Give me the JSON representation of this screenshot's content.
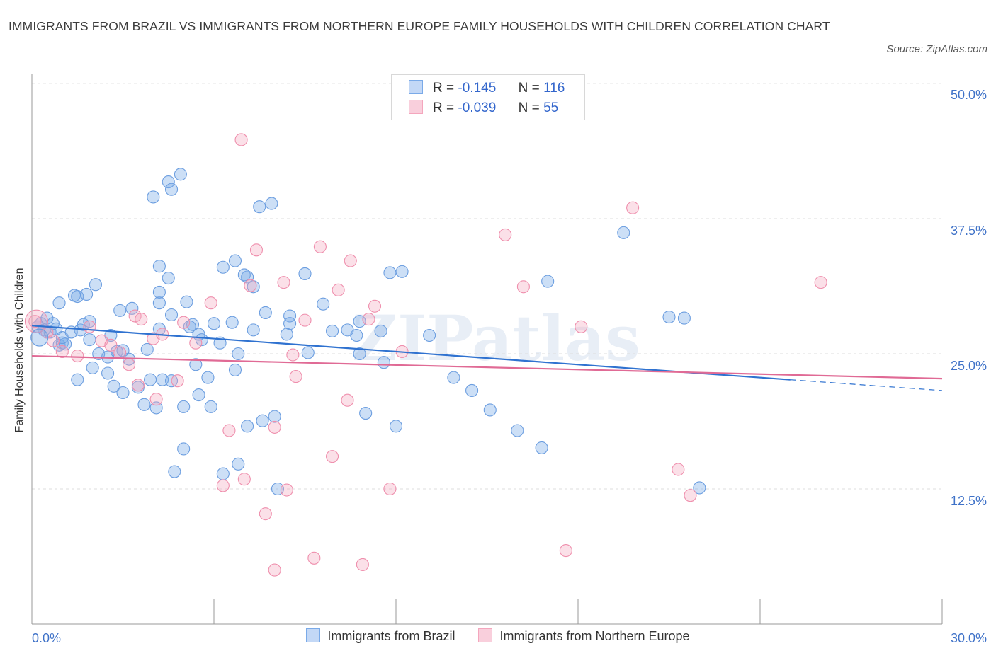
{
  "title": "IMMIGRANTS FROM BRAZIL VS IMMIGRANTS FROM NORTHERN EUROPE FAMILY HOUSEHOLDS WITH CHILDREN CORRELATION CHART",
  "source": "Source: ZipAtlas.com",
  "watermark": "ZIPatlas",
  "colors": {
    "series1": "#7aaae8",
    "series1_line": "#2f72d0",
    "series2": "#f4a6bd",
    "series2_line": "#e06a95",
    "tick_label": "#3f72c8"
  },
  "legend_top": {
    "rows": [
      {
        "r_label": "R =",
        "r_value": "-0.145",
        "n_label": "N =",
        "n_value": "116"
      },
      {
        "r_label": "R =",
        "r_value": "-0.039",
        "n_label": "N =",
        "n_value": "55"
      }
    ]
  },
  "chart_data": {
    "type": "scatter",
    "title": "IMMIGRANTS FROM BRAZIL VS IMMIGRANTS FROM NORTHERN EUROPE FAMILY HOUSEHOLDS WITH CHILDREN CORRELATION CHART",
    "xlabel": "",
    "ylabel": "Family Households with Children",
    "xlim": [
      0,
      30
    ],
    "ylim": [
      0,
      50
    ],
    "x_tick_labels": [
      "0.0%",
      "30.0%"
    ],
    "y_tick_labels": [
      "12.5%",
      "25.0%",
      "37.5%",
      "50.0%"
    ],
    "y_ticks": [
      12.5,
      25.0,
      37.5,
      50.0
    ],
    "grid": true,
    "legend_position": "bottom-center",
    "series": [
      {
        "name": "Immigrants from Brazil",
        "R": -0.145,
        "N": 116,
        "trend": {
          "x": [
            0,
            25
          ],
          "y": [
            27.6,
            22.6
          ],
          "dashed_extension_to_x": 30
        },
        "points": [
          [
            0.2,
            27.5
          ],
          [
            0.3,
            27.8
          ],
          [
            0.4,
            27.2
          ],
          [
            0.5,
            28.3
          ],
          [
            0.6,
            27.0
          ],
          [
            0.7,
            27.8
          ],
          [
            0.8,
            27.3
          ],
          [
            0.9,
            25.8
          ],
          [
            1.0,
            26.0
          ],
          [
            1.1,
            25.9
          ],
          [
            0.9,
            29.7
          ],
          [
            1.4,
            30.4
          ],
          [
            1.5,
            30.3
          ],
          [
            1.8,
            30.5
          ],
          [
            2.1,
            31.4
          ],
          [
            1.6,
            27.2
          ],
          [
            1.7,
            27.7
          ],
          [
            1.9,
            26.3
          ],
          [
            2.2,
            25.0
          ],
          [
            2.5,
            24.7
          ],
          [
            2.8,
            25.2
          ],
          [
            3.0,
            25.3
          ],
          [
            2.9,
            29.0
          ],
          [
            3.3,
            29.2
          ],
          [
            1.5,
            22.6
          ],
          [
            2.0,
            23.7
          ],
          [
            2.5,
            23.2
          ],
          [
            2.7,
            22.0
          ],
          [
            3.0,
            21.4
          ],
          [
            3.5,
            21.9
          ],
          [
            3.7,
            20.3
          ],
          [
            3.9,
            22.6
          ],
          [
            4.3,
            22.6
          ],
          [
            4.1,
            20.0
          ],
          [
            4.6,
            22.5
          ],
          [
            4.2,
            27.3
          ],
          [
            4.6,
            28.6
          ],
          [
            4.2,
            29.7
          ],
          [
            4.2,
            33.1
          ],
          [
            4.5,
            32.0
          ],
          [
            4.0,
            39.5
          ],
          [
            4.5,
            40.9
          ],
          [
            4.6,
            40.2
          ],
          [
            4.9,
            41.6
          ],
          [
            4.2,
            30.7
          ],
          [
            5.1,
            29.8
          ],
          [
            5.3,
            27.7
          ],
          [
            5.5,
            26.8
          ],
          [
            5.6,
            26.3
          ],
          [
            5.8,
            22.8
          ],
          [
            5.5,
            21.2
          ],
          [
            5.9,
            20.1
          ],
          [
            5.4,
            24.0
          ],
          [
            5.0,
            20.1
          ],
          [
            5.0,
            16.2
          ],
          [
            4.7,
            14.1
          ],
          [
            6.0,
            27.8
          ],
          [
            6.6,
            27.9
          ],
          [
            6.3,
            33.0
          ],
          [
            6.7,
            33.6
          ],
          [
            7.1,
            32.1
          ],
          [
            7.3,
            31.2
          ],
          [
            7.0,
            32.3
          ],
          [
            7.5,
            38.6
          ],
          [
            7.9,
            38.9
          ],
          [
            7.7,
            28.8
          ],
          [
            8.5,
            28.5
          ],
          [
            8.5,
            27.8
          ],
          [
            7.3,
            27.2
          ],
          [
            6.8,
            25.0
          ],
          [
            6.7,
            23.5
          ],
          [
            7.1,
            18.3
          ],
          [
            7.6,
            18.8
          ],
          [
            8.0,
            19.2
          ],
          [
            6.3,
            13.9
          ],
          [
            6.8,
            14.8
          ],
          [
            8.1,
            12.5
          ],
          [
            9.0,
            32.4
          ],
          [
            9.6,
            29.6
          ],
          [
            9.9,
            27.1
          ],
          [
            10.7,
            26.7
          ],
          [
            10.8,
            25.0
          ],
          [
            11.5,
            27.1
          ],
          [
            10.8,
            28.0
          ],
          [
            11.8,
            32.5
          ],
          [
            12.2,
            32.6
          ],
          [
            11.0,
            19.5
          ],
          [
            12.0,
            18.3
          ],
          [
            13.1,
            26.7
          ],
          [
            13.9,
            22.8
          ],
          [
            14.5,
            21.6
          ],
          [
            15.1,
            19.8
          ],
          [
            16.0,
            17.9
          ],
          [
            16.8,
            16.3
          ],
          [
            17.0,
            31.7
          ],
          [
            19.5,
            36.2
          ],
          [
            21.0,
            28.4
          ],
          [
            21.5,
            28.3
          ],
          [
            22.0,
            12.6
          ],
          [
            1.0,
            26.5
          ],
          [
            1.3,
            27.0
          ],
          [
            1.9,
            28.0
          ],
          [
            2.6,
            26.7
          ],
          [
            3.2,
            24.5
          ],
          [
            3.8,
            25.4
          ],
          [
            5.2,
            27.5
          ],
          [
            6.2,
            26.0
          ],
          [
            8.4,
            26.8
          ],
          [
            9.1,
            25.1
          ],
          [
            10.4,
            27.2
          ],
          [
            11.6,
            24.2
          ]
        ]
      },
      {
        "name": "Immigrants from Northern Europe",
        "R": -0.039,
        "N": 55,
        "trend": {
          "x": [
            0,
            30
          ],
          "y": [
            24.8,
            22.7
          ]
        },
        "points": [
          [
            0.1,
            28.0
          ],
          [
            0.5,
            27.0
          ],
          [
            0.7,
            26.2
          ],
          [
            1.0,
            25.2
          ],
          [
            1.5,
            24.8
          ],
          [
            1.9,
            27.5
          ],
          [
            2.3,
            26.2
          ],
          [
            2.6,
            25.8
          ],
          [
            2.9,
            25.1
          ],
          [
            3.2,
            24.0
          ],
          [
            3.4,
            28.5
          ],
          [
            3.6,
            28.2
          ],
          [
            4.0,
            26.4
          ],
          [
            4.3,
            26.8
          ],
          [
            3.5,
            22.1
          ],
          [
            4.1,
            20.8
          ],
          [
            4.8,
            22.5
          ],
          [
            5.0,
            27.9
          ],
          [
            5.4,
            26.0
          ],
          [
            5.9,
            29.7
          ],
          [
            6.5,
            17.9
          ],
          [
            6.3,
            12.8
          ],
          [
            7.2,
            31.3
          ],
          [
            7.4,
            34.6
          ],
          [
            8.3,
            31.6
          ],
          [
            8.0,
            18.2
          ],
          [
            7.7,
            10.2
          ],
          [
            7.0,
            13.4
          ],
          [
            9.0,
            28.1
          ],
          [
            9.5,
            34.9
          ],
          [
            10.1,
            30.9
          ],
          [
            10.5,
            33.6
          ],
          [
            11.1,
            28.2
          ],
          [
            11.3,
            29.4
          ],
          [
            10.4,
            20.7
          ],
          [
            9.9,
            15.5
          ],
          [
            8.7,
            22.9
          ],
          [
            8.6,
            24.9
          ],
          [
            8.4,
            12.4
          ],
          [
            8.0,
            5.0
          ],
          [
            9.3,
            6.1
          ],
          [
            10.9,
            5.5
          ],
          [
            11.8,
            12.5
          ],
          [
            12.2,
            25.2
          ],
          [
            15.6,
            36.0
          ],
          [
            16.2,
            31.2
          ],
          [
            18.1,
            27.5
          ],
          [
            17.6,
            6.8
          ],
          [
            19.8,
            38.5
          ],
          [
            21.3,
            14.3
          ],
          [
            21.7,
            11.9
          ],
          [
            26.0,
            31.6
          ],
          [
            6.9,
            44.8
          ],
          [
            12.8,
            49.1
          ]
        ]
      }
    ]
  },
  "bottom_legend": [
    {
      "label": "Immigrants from Brazil"
    },
    {
      "label": "Immigrants from Northern Europe"
    }
  ]
}
